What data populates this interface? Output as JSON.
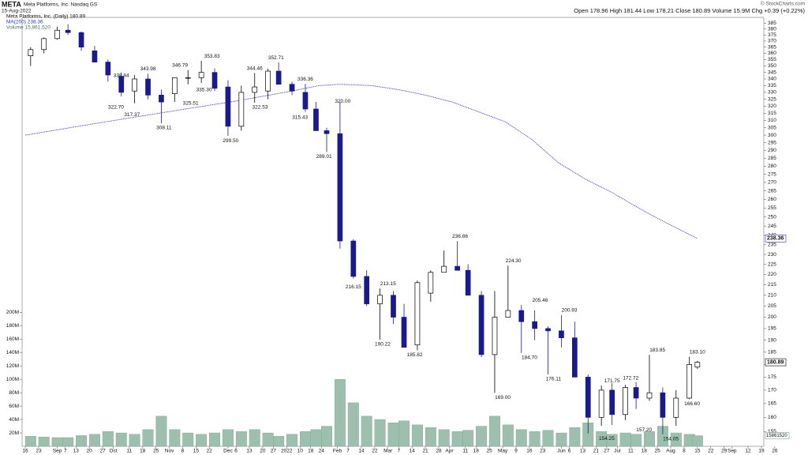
{
  "chart_data": {
    "type": "candlestick",
    "title": "META",
    "subtitle": "Meta Platforms, Inc.  Nasdaq GS",
    "date": "15-Aug-2022",
    "credit": "© StockCharts.com",
    "quote": "Open 178.96  High 181.44  Low 178.21  Close 180.89  Volume 15.9M  Chg +0.39 (+0.22%)",
    "legend": [
      "Meta Platforms, Inc. (Daily) 180.89",
      "MA(200) 238.36",
      "Volume 15,861,520"
    ],
    "up_color": "#000000",
    "down_color": "#1a1a8c",
    "volume_color": "#9dbfae",
    "ma_color": "#3333bb",
    "log_scale": true,
    "xlim": [
      -1.2,
      276.9
    ],
    "ylim": [
      150,
      390
    ],
    "y2lim": [
      0,
      640000000
    ],
    "x": [
      2,
      7,
      12,
      16,
      21,
      26,
      31,
      36,
      41,
      46,
      51,
      56,
      61,
      66,
      71,
      76,
      81,
      86,
      91,
      95,
      100,
      105,
      109,
      113,
      118,
      123,
      128,
      133,
      138,
      142,
      147,
      152,
      157,
      162,
      166,
      171,
      176,
      181,
      186,
      191,
      196,
      201,
      206,
      211,
      216,
      220,
      225,
      229,
      234,
      239,
      244,
      249,
      252
    ],
    "open": [
      358,
      363,
      372,
      379,
      377,
      362,
      353,
      342,
      331,
      340,
      328,
      329,
      341,
      341,
      345,
      334,
      306,
      330,
      331,
      346,
      336,
      330,
      318,
      303,
      301,
      237,
      219,
      206,
      210,
      200,
      188,
      211,
      221,
      224,
      222,
      210,
      184,
      200,
      203,
      198,
      195,
      194,
      191,
      175,
      160,
      170,
      161,
      171,
      167,
      169,
      160,
      167,
      178.96
    ],
    "high": [
      365,
      373,
      382,
      384,
      378,
      366,
      355,
      345,
      343,
      344,
      332,
      341,
      346.8,
      354,
      348,
      339,
      335,
      344.5,
      348,
      352.7,
      338,
      336.3,
      323,
      305,
      323,
      238,
      222,
      213.2,
      212,
      206,
      217,
      222,
      232,
      236.9,
      225,
      212,
      212,
      224.3,
      205.5,
      203,
      196,
      200.9,
      198,
      176,
      171.8,
      172.7,
      172,
      173,
      183.9,
      171,
      170,
      183.1,
      181.44
    ],
    "low": [
      350,
      360,
      371,
      375,
      362,
      353,
      338,
      327,
      322,
      325,
      308,
      323,
      336,
      337,
      331,
      299.5,
      303,
      322.5,
      325,
      336,
      328,
      316,
      303,
      289,
      233,
      218,
      205,
      190.2,
      197,
      187,
      185.8,
      207,
      221,
      222,
      210,
      183,
      169,
      200,
      184.7,
      190,
      176.1,
      187,
      175,
      154.3,
      157,
      157.3,
      159,
      163,
      166,
      154.1,
      157,
      166.6,
      178.21
    ],
    "close": [
      363,
      372,
      379,
      377,
      365,
      353,
      343,
      330,
      340,
      328,
      323,
      341,
      341,
      345,
      333,
      306,
      330,
      334,
      346,
      336,
      331,
      318,
      303,
      301,
      237,
      219,
      206,
      210,
      200,
      187,
      216,
      221,
      224,
      222,
      210,
      184,
      200,
      203,
      198,
      195,
      194,
      191,
      175,
      160,
      170,
      161,
      171,
      167,
      169,
      160,
      167,
      180,
      180.89
    ],
    "volume": [
      15000000,
      14000000,
      13000000,
      13000000,
      16000000,
      18000000,
      22000000,
      20000000,
      18000000,
      25000000,
      45000000,
      25000000,
      20000000,
      18000000,
      20000000,
      25000000,
      22000000,
      25000000,
      20000000,
      15000000,
      18000000,
      22000000,
      25000000,
      30000000,
      100000000,
      65000000,
      45000000,
      40000000,
      35000000,
      38000000,
      32000000,
      28000000,
      25000000,
      22000000,
      24000000,
      30000000,
      45000000,
      32000000,
      25000000,
      22000000,
      24000000,
      20000000,
      28000000,
      35000000,
      22000000,
      18000000,
      20000000,
      18000000,
      22000000,
      30000000,
      20000000,
      18000000,
      15861520
    ],
    "ma": {
      "x": [
        0,
        20,
        40,
        60,
        80,
        100,
        110,
        118,
        130,
        140,
        150,
        160,
        170,
        180,
        190,
        200,
        210,
        220,
        230,
        240,
        252
      ],
      "values": [
        300,
        306,
        312,
        318,
        324,
        331,
        335,
        336,
        335,
        332,
        328,
        323,
        316,
        309,
        297,
        282,
        272,
        264,
        255,
        247,
        238.36
      ]
    },
    "annotations": [
      {
        "x": 36,
        "value": 338.84,
        "label": "338.84"
      },
      {
        "x": 46,
        "value": 343.98,
        "label": "343.98"
      },
      {
        "x": 58,
        "value": 346.79,
        "label": "346.79"
      },
      {
        "x": 70,
        "value": 353.83,
        "label": "353.83"
      },
      {
        "x": 94,
        "value": 352.71,
        "label": "352.71"
      },
      {
        "x": 86,
        "value": 344.46,
        "label": "344.46"
      },
      {
        "x": 105,
        "value": 336.36,
        "label": "336.36"
      },
      {
        "x": 119,
        "value": 320.0,
        "label": "320.00"
      },
      {
        "x": 34,
        "value": 322.7,
        "label": "322.70"
      },
      {
        "x": 40,
        "value": 317.37,
        "label": "317.37"
      },
      {
        "x": 52,
        "value": 308.11,
        "label": "308.11"
      },
      {
        "x": 62,
        "value": 325.51,
        "label": "325.51"
      },
      {
        "x": 67,
        "value": 335.3,
        "label": "335.30"
      },
      {
        "x": 77,
        "value": 299.5,
        "label": "299.50"
      },
      {
        "x": 88,
        "value": 322.53,
        "label": "322.53"
      },
      {
        "x": 103,
        "value": 315.43,
        "label": "315.43"
      },
      {
        "x": 112,
        "value": 289.01,
        "label": "289.01"
      },
      {
        "x": 123,
        "value": 216.15,
        "label": "216.15"
      },
      {
        "x": 136,
        "value": 213.15,
        "label": "213.15"
      },
      {
        "x": 134,
        "value": 190.22,
        "label": "190.22"
      },
      {
        "x": 146,
        "value": 185.82,
        "label": "185.82"
      },
      {
        "x": 163,
        "value": 236.86,
        "label": "236.86"
      },
      {
        "x": 183,
        "value": 224.3,
        "label": "224.30"
      },
      {
        "x": 193,
        "value": 205.46,
        "label": "205.46"
      },
      {
        "x": 189,
        "value": 184.7,
        "label": "184.70"
      },
      {
        "x": 204,
        "value": 200.93,
        "label": "200.93"
      },
      {
        "x": 198,
        "value": 176.11,
        "label": "176.11"
      },
      {
        "x": 179,
        "value": 169.0,
        "label": "169.00"
      },
      {
        "x": 220,
        "value": 171.75,
        "label": "171.75"
      },
      {
        "x": 218,
        "value": 154.25,
        "label": "154.25"
      },
      {
        "x": 227,
        "value": 172.72,
        "label": "172.72"
      },
      {
        "x": 232,
        "value": 157.2,
        "label": "157.20"
      },
      {
        "x": 237,
        "value": 183.85,
        "label": "183.85"
      },
      {
        "x": 242,
        "value": 154.05,
        "label": "154.05"
      },
      {
        "x": 252,
        "value": 183.1,
        "label": "183.10"
      },
      {
        "x": 250,
        "value": 166.6,
        "label": "166.60"
      }
    ],
    "yticks": [
      155,
      160,
      165,
      170,
      175,
      180,
      185,
      190,
      195,
      200,
      205,
      210,
      215,
      220,
      225,
      230,
      235,
      240,
      245,
      250,
      255,
      260,
      265,
      270,
      275,
      280,
      285,
      290,
      295,
      300,
      305,
      310,
      315,
      320,
      325,
      330,
      335,
      340,
      345,
      350,
      355,
      360,
      365,
      370,
      375,
      380,
      385
    ],
    "y2ticks": [
      {
        "value": 20000000,
        "label": "20M"
      },
      {
        "value": 40000000,
        "label": "40M"
      },
      {
        "value": 60000000,
        "label": "60M"
      },
      {
        "value": 80000000,
        "label": "80M"
      },
      {
        "value": 100000000,
        "label": "100M"
      },
      {
        "value": 120000000,
        "label": "120M"
      },
      {
        "value": 140000000,
        "label": "140M"
      },
      {
        "value": 160000000,
        "label": "160M"
      },
      {
        "value": 180000000,
        "label": "180M"
      },
      {
        "value": 200000000,
        "label": "200M"
      }
    ],
    "xticks": [
      {
        "value": 0,
        "label": "16"
      },
      {
        "value": 5,
        "label": "23"
      },
      {
        "value": 12,
        "label": "Sep"
      },
      {
        "value": 15,
        "label": "7"
      },
      {
        "value": 19,
        "label": "13"
      },
      {
        "value": 24,
        "label": "20"
      },
      {
        "value": 29,
        "label": "27"
      },
      {
        "value": 33,
        "label": "Oct"
      },
      {
        "value": 39,
        "label": "11"
      },
      {
        "value": 44,
        "label": "18"
      },
      {
        "value": 49,
        "label": "25"
      },
      {
        "value": 54,
        "label": "Nov"
      },
      {
        "value": 59,
        "label": "8"
      },
      {
        "value": 64,
        "label": "15"
      },
      {
        "value": 69,
        "label": "22"
      },
      {
        "value": 76,
        "label": "Dec"
      },
      {
        "value": 79,
        "label": "6"
      },
      {
        "value": 84,
        "label": "13"
      },
      {
        "value": 89,
        "label": "20"
      },
      {
        "value": 93,
        "label": "27"
      },
      {
        "value": 98,
        "label": "2022"
      },
      {
        "value": 103,
        "label": "10"
      },
      {
        "value": 107,
        "label": "18"
      },
      {
        "value": 111,
        "label": "24"
      },
      {
        "value": 117,
        "label": "Feb"
      },
      {
        "value": 121,
        "label": "7"
      },
      {
        "value": 126,
        "label": "14"
      },
      {
        "value": 131,
        "label": "22"
      },
      {
        "value": 136,
        "label": "Mar"
      },
      {
        "value": 140,
        "label": "7"
      },
      {
        "value": 145,
        "label": "14"
      },
      {
        "value": 150,
        "label": "21"
      },
      {
        "value": 155,
        "label": "28"
      },
      {
        "value": 159,
        "label": "Apr"
      },
      {
        "value": 165,
        "label": "11"
      },
      {
        "value": 169,
        "label": "18"
      },
      {
        "value": 174,
        "label": "25"
      },
      {
        "value": 179,
        "label": "May"
      },
      {
        "value": 184,
        "label": "9"
      },
      {
        "value": 189,
        "label": "16"
      },
      {
        "value": 194,
        "label": "23"
      },
      {
        "value": 201,
        "label": "Jun"
      },
      {
        "value": 204,
        "label": "6"
      },
      {
        "value": 209,
        "label": "13"
      },
      {
        "value": 214,
        "label": "21"
      },
      {
        "value": 218,
        "label": "27"
      },
      {
        "value": 222,
        "label": "Jul"
      },
      {
        "value": 227,
        "label": "11"
      },
      {
        "value": 232,
        "label": "18"
      },
      {
        "value": 237,
        "label": "25"
      },
      {
        "value": 242,
        "label": "Aug"
      },
      {
        "value": 247,
        "label": "8"
      },
      {
        "value": 252,
        "label": "15"
      },
      {
        "value": 257,
        "label": "22"
      },
      {
        "value": 262,
        "label": "29"
      },
      {
        "value": 265,
        "label": "Sep"
      },
      {
        "value": 271,
        "label": "12"
      },
      {
        "value": 276,
        "label": "19"
      },
      {
        "value": 281,
        "label": "26"
      }
    ]
  }
}
